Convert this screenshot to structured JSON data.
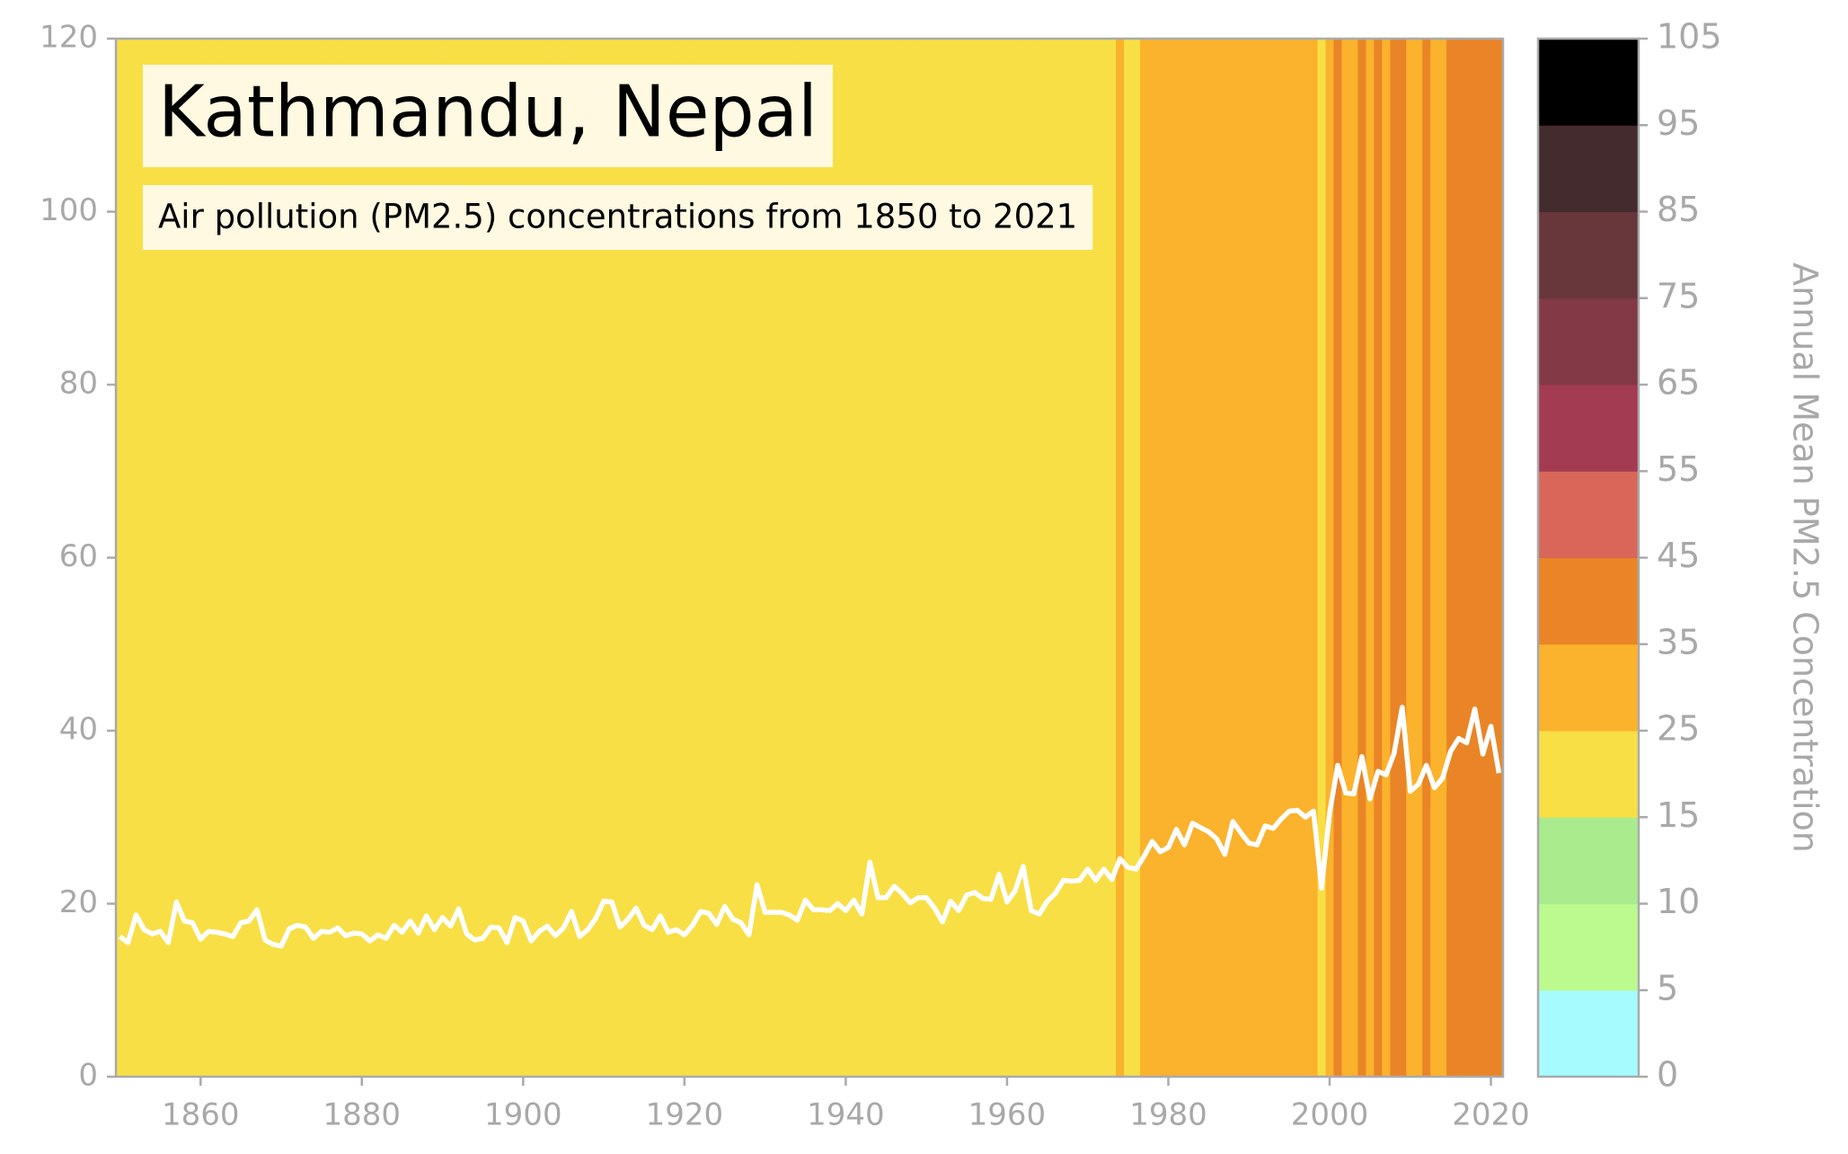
{
  "chart_data": {
    "type": "line",
    "title": "Kathmandu, Nepal",
    "subtitle": "Air pollution (PM2.5) concentrations from 1850 to 2021",
    "x": [
      1850,
      1851,
      1852,
      1853,
      1854,
      1855,
      1856,
      1857,
      1858,
      1859,
      1860,
      1861,
      1862,
      1863,
      1864,
      1865,
      1866,
      1867,
      1868,
      1869,
      1870,
      1871,
      1872,
      1873,
      1874,
      1875,
      1876,
      1877,
      1878,
      1879,
      1880,
      1881,
      1882,
      1883,
      1884,
      1885,
      1886,
      1887,
      1888,
      1889,
      1890,
      1891,
      1892,
      1893,
      1894,
      1895,
      1896,
      1897,
      1898,
      1899,
      1900,
      1901,
      1902,
      1903,
      1904,
      1905,
      1906,
      1907,
      1908,
      1909,
      1910,
      1911,
      1912,
      1913,
      1914,
      1915,
      1916,
      1917,
      1918,
      1919,
      1920,
      1921,
      1922,
      1923,
      1924,
      1925,
      1926,
      1927,
      1928,
      1929,
      1930,
      1931,
      1932,
      1933,
      1934,
      1935,
      1936,
      1937,
      1938,
      1939,
      1940,
      1941,
      1942,
      1943,
      1944,
      1945,
      1946,
      1947,
      1948,
      1949,
      1950,
      1951,
      1952,
      1953,
      1954,
      1955,
      1956,
      1957,
      1958,
      1959,
      1960,
      1961,
      1962,
      1963,
      1964,
      1965,
      1966,
      1967,
      1968,
      1969,
      1970,
      1971,
      1972,
      1973,
      1974,
      1975,
      1976,
      1977,
      1978,
      1979,
      1980,
      1981,
      1982,
      1983,
      1984,
      1985,
      1986,
      1987,
      1988,
      1989,
      1990,
      1991,
      1992,
      1993,
      1994,
      1995,
      1996,
      1997,
      1998,
      1999,
      2000,
      2001,
      2002,
      2003,
      2004,
      2005,
      2006,
      2007,
      2008,
      2009,
      2010,
      2011,
      2012,
      2013,
      2014,
      2015,
      2016,
      2017,
      2018,
      2019,
      2020,
      2021
    ],
    "values": [
      16.2,
      15.5,
      18.7,
      17,
      16.5,
      16.8,
      15.5,
      20.2,
      18,
      17.8,
      15.9,
      16.8,
      16.7,
      16.5,
      16.2,
      17.8,
      18,
      19.3,
      15.8,
      15.3,
      15.1,
      17.1,
      17.5,
      17.3,
      16,
      16.8,
      16.7,
      17.2,
      16.3,
      16.6,
      16.5,
      15.7,
      16.4,
      16,
      17.5,
      16.7,
      18,
      16.6,
      18.6,
      17,
      18.4,
      17.4,
      19.4,
      16.5,
      15.8,
      16,
      17.3,
      17.2,
      15.5,
      18.4,
      18,
      15.7,
      16.8,
      17.4,
      16.3,
      17.2,
      19.1,
      16.2,
      17,
      18.3,
      20.3,
      20.2,
      17.3,
      18.2,
      19.5,
      17.5,
      17,
      18.6,
      16.7,
      17,
      16.4,
      17.5,
      19.1,
      18.9,
      17.6,
      19.7,
      18.2,
      17.8,
      16.4,
      22.2,
      19,
      19,
      19,
      18.7,
      18.1,
      20.4,
      19.3,
      19.3,
      19.2,
      20,
      19.2,
      20.4,
      18.8,
      24.8,
      20.7,
      20.7,
      22,
      21.2,
      20.1,
      20.7,
      20.7,
      19.5,
      17.9,
      20.3,
      19.2,
      21,
      21.3,
      20.6,
      20.5,
      23.4,
      20.2,
      21.5,
      24.3,
      19.2,
      18.8,
      20.3,
      21.2,
      22.7,
      22.6,
      22.7,
      24,
      22.7,
      24,
      22.8,
      25.2,
      24.2,
      24,
      25.5,
      27.2,
      26,
      26.5,
      28.6,
      26.8,
      29.3,
      28.8,
      28.3,
      27.5,
      25.7,
      29.5,
      28.2,
      27,
      26.8,
      29,
      28.7,
      29.8,
      30.7,
      30.8,
      30,
      30.7,
      21.8,
      30.5,
      36,
      32.8,
      32.7,
      37,
      32.1,
      35.3,
      34.9,
      37.4,
      42.7,
      33,
      33.8,
      36,
      33.4,
      34.5,
      37.6,
      39.1,
      38.6,
      42.5,
      37.3,
      40.5,
      35.1
    ],
    "line_color": "#ffffff",
    "xlim": [
      1849.5,
      2021.5
    ],
    "ylim": [
      0,
      120
    ],
    "xticks": [
      1860,
      1880,
      1900,
      1920,
      1940,
      1960,
      1980,
      2000,
      2020
    ],
    "yticks": [
      0,
      20,
      40,
      60,
      80,
      100,
      120
    ],
    "colorbar": {
      "label": "Annual Mean PM2.5 Concentration",
      "bounds": [
        0,
        5,
        10,
        15,
        25,
        35,
        45,
        55,
        65,
        75,
        85,
        95,
        105
      ],
      "colors": [
        "#a5fbff",
        "#bcfa8f",
        "#a9eb8d",
        "#f8df46",
        "#fbb22c",
        "#e98526",
        "#d8675a",
        "#a33b52",
        "#833a46",
        "#67373b",
        "#442b2d",
        "#000000"
      ]
    }
  }
}
